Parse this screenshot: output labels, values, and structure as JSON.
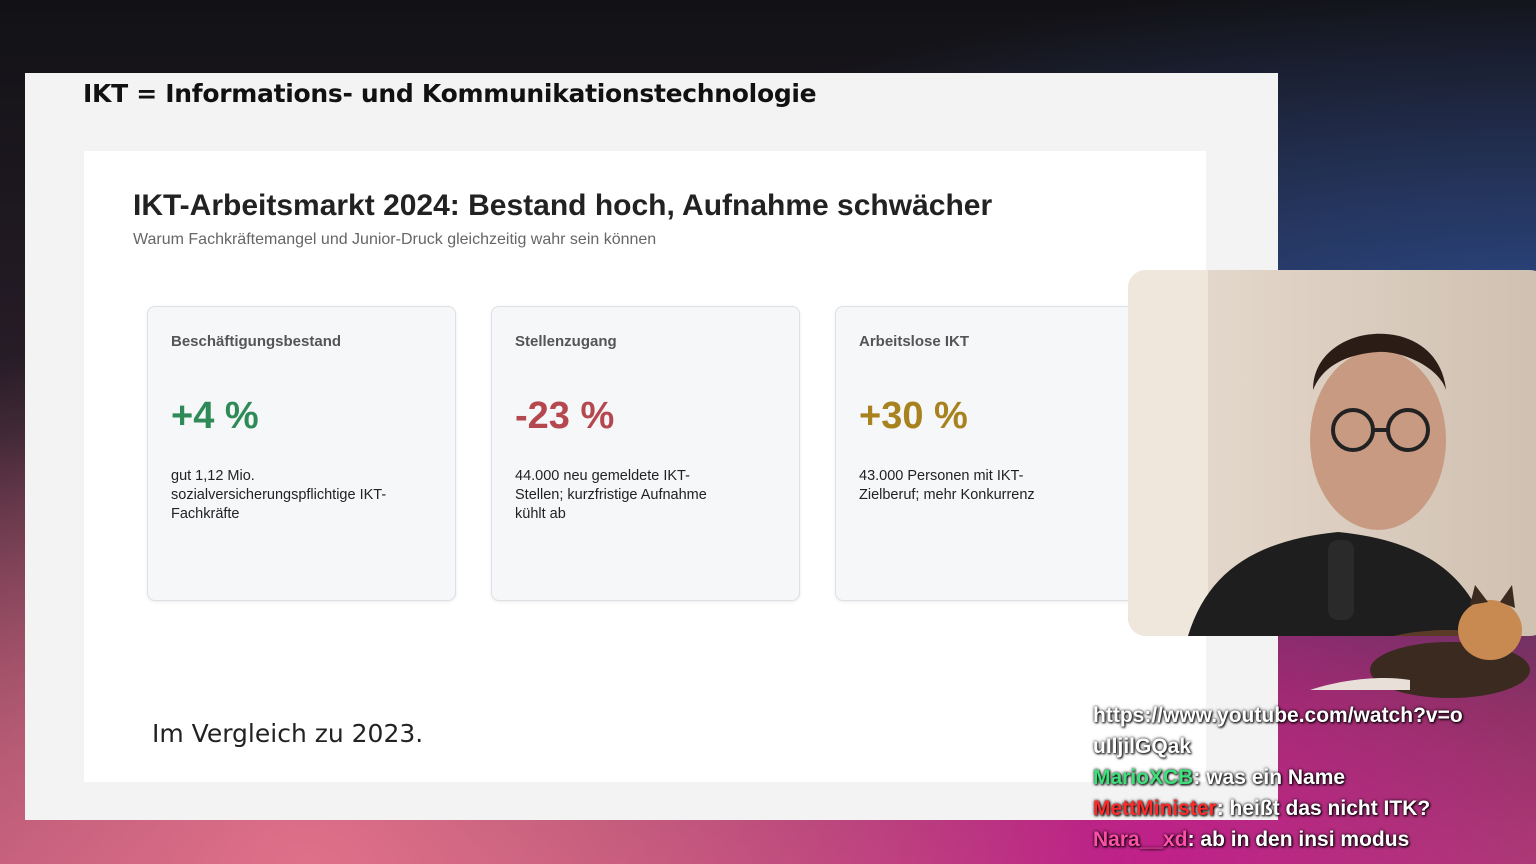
{
  "slide": {
    "header": "IKT = Informations- und Kommunikationstechnologie",
    "title": "IKT-Arbeitsmarkt 2024: Bestand hoch, Aufnahme schwächer",
    "subtitle": "Warum Fachkräftemangel und Junior-Druck gleichzeitig wahr sein können",
    "cards": [
      {
        "label": "Beschäftigungsbestand",
        "value": "+4 %",
        "color": "#2e8b57",
        "description": "gut 1,12 Mio. sozialversicherungspflichtige IKT-Fachkräfte"
      },
      {
        "label": "Stellenzugang",
        "value": "-23 %",
        "color": "#b5474f",
        "description": "44.000 neu gemeldete IKT-Stellen; kurzfristige Aufnahme kühlt ab"
      },
      {
        "label": "Arbeitslose IKT",
        "value": "+30 %",
        "color": "#a8821f",
        "description": "43.000 Personen mit IKT-Zielberuf; mehr Konkurrenz"
      }
    ],
    "note": "Im Vergleich zu 2023."
  },
  "chat": [
    {
      "text": "https://www.youtube.com/watch?v=ouIljilGQak"
    },
    {
      "user": "MarioXCB",
      "color": "#3ee07a",
      "text": "was ein Name"
    },
    {
      "user": "MettMinister",
      "color": "#ff2a2a",
      "text": "heißt das nicht ITK?"
    },
    {
      "user": "Nara__xd",
      "color": "#ff4fa8",
      "text": "ab in den insi modus"
    }
  ]
}
